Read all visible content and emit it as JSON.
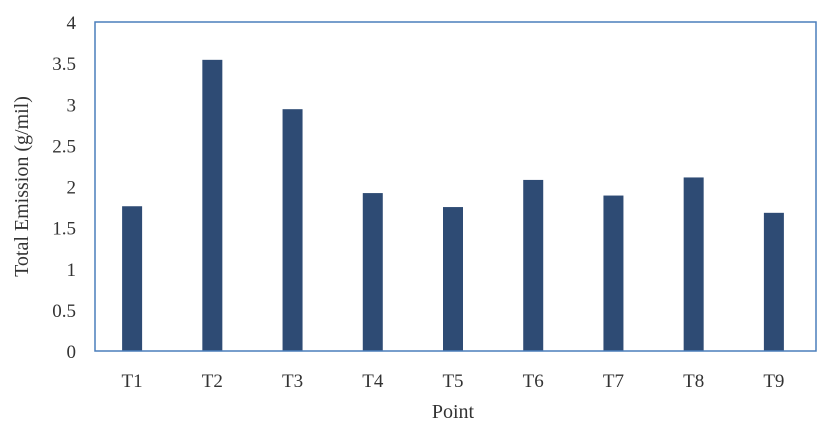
{
  "chart_data": {
    "type": "bar",
    "title": "",
    "xlabel": "Point",
    "ylabel": "Total Emission (g/mil)",
    "categories": [
      "T1",
      "T2",
      "T3",
      "T4",
      "T5",
      "T6",
      "T7",
      "T8",
      "T9"
    ],
    "values": [
      1.76,
      3.54,
      2.94,
      1.92,
      1.75,
      2.08,
      1.89,
      2.11,
      1.68
    ],
    "ylim": [
      0,
      4
    ],
    "yticks": [
      "0",
      "0.5",
      "1",
      "1.5",
      "2",
      "2.5",
      "3",
      "3.5",
      "4"
    ],
    "grid": false,
    "legend": "none",
    "colors": {
      "bar": "#2e4b74",
      "frame": "#4a7ebb"
    }
  }
}
